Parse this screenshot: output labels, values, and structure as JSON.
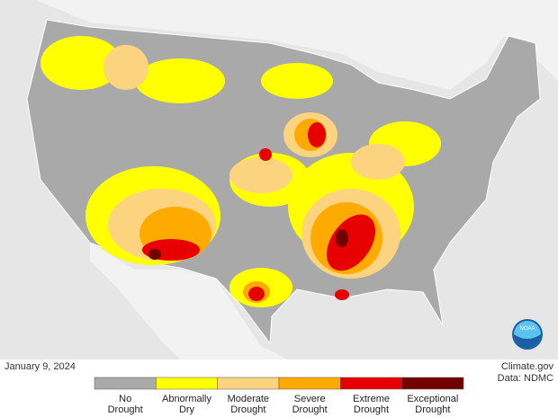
{
  "date": "January 9, 2024",
  "credits": [
    "Climate.gov",
    "Data: NDMC"
  ],
  "logo": "NOAA",
  "legend": [
    {
      "label": "No Drought",
      "color": "#a9a9a9"
    },
    {
      "label": "Abnormally Dry",
      "color": "#ffff00"
    },
    {
      "label": "Moderate Drought",
      "color": "#fcd37f"
    },
    {
      "label": "Severe Drought",
      "color": "#ffaa00"
    },
    {
      "label": "Extreme Drought",
      "color": "#e60000"
    },
    {
      "label": "Exceptional Drought",
      "color": "#730000"
    }
  ]
}
